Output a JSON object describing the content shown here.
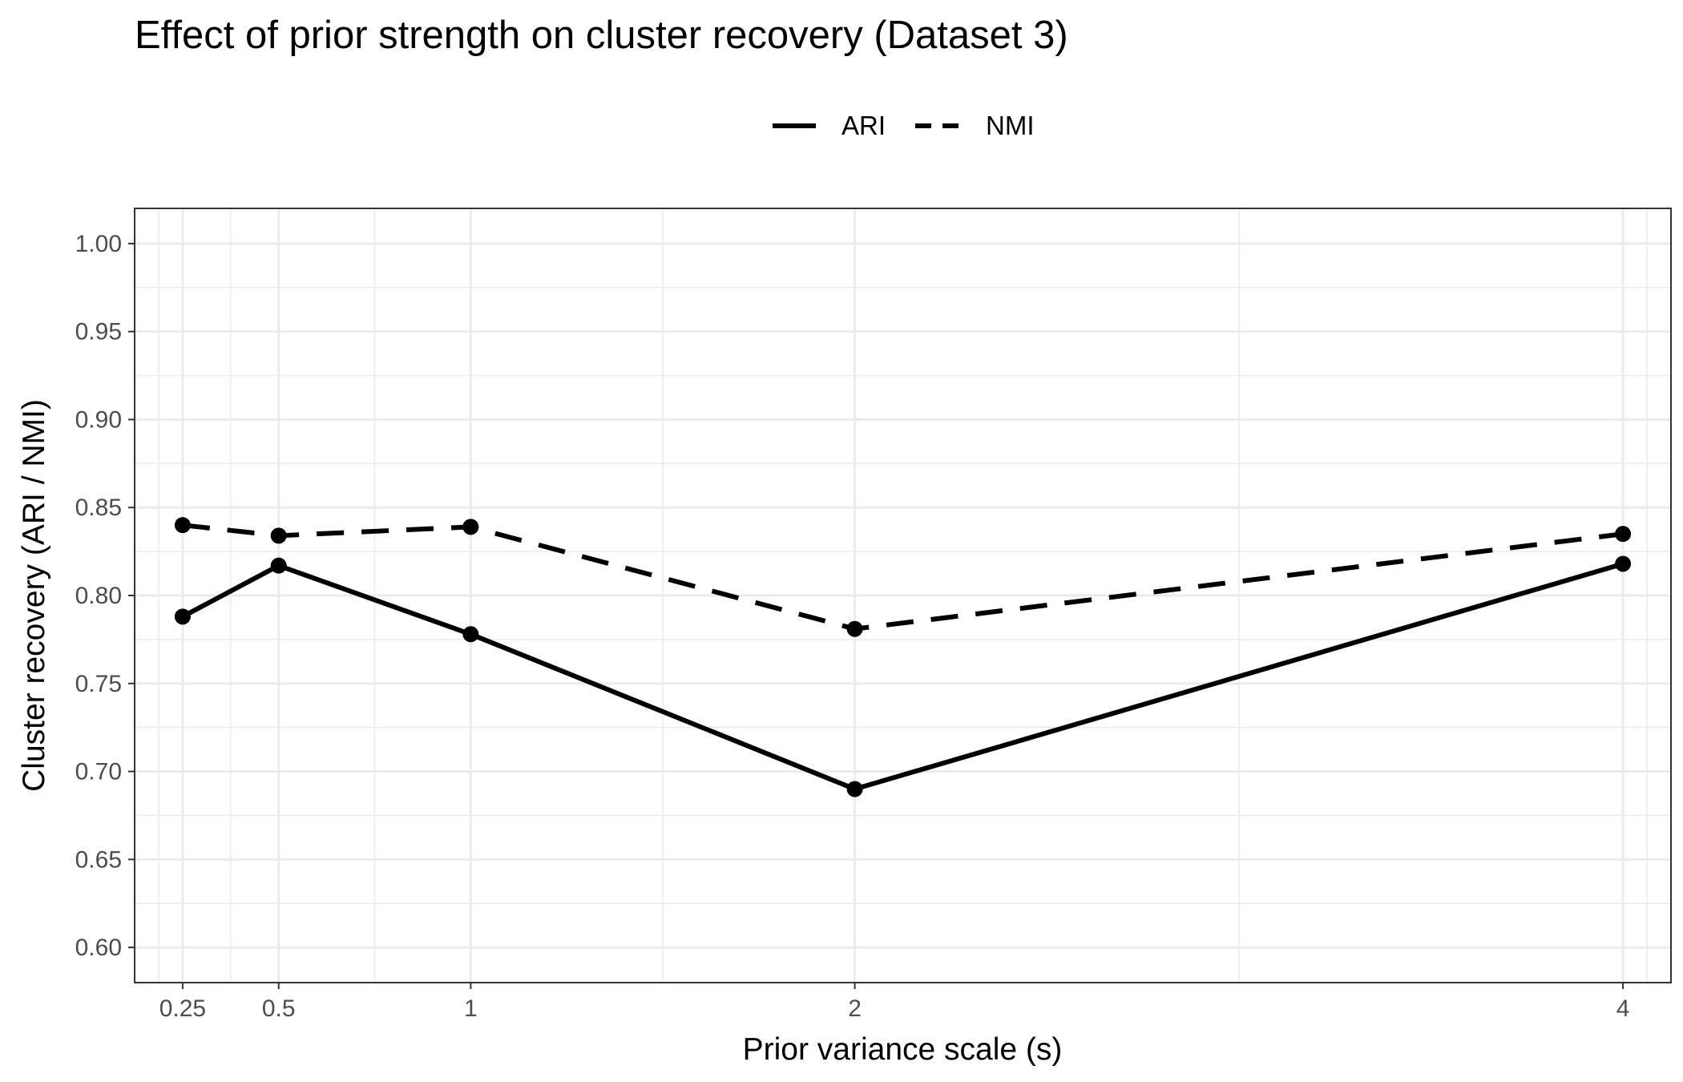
{
  "chart_data": {
    "type": "line",
    "title": "Effect of prior strength on cluster recovery (Dataset 3)",
    "xlabel": "Prior variance scale (s)",
    "ylabel": "Cluster recovery (ARI / NMI)",
    "x": [
      0.25,
      0.5,
      1,
      2,
      4
    ],
    "x_tick_labels": [
      "0.25",
      "0.5",
      "1",
      "2",
      "4"
    ],
    "xlim": [
      0.125,
      4.125
    ],
    "ylim": [
      0.58,
      1.02
    ],
    "y_ticks": [
      0.6,
      0.65,
      0.7,
      0.75,
      0.8,
      0.85,
      0.9,
      0.95,
      1.0
    ],
    "y_tick_labels": [
      "0.60",
      "0.65",
      "0.70",
      "0.75",
      "0.80",
      "0.85",
      "0.90",
      "0.95",
      "1.00"
    ],
    "grid": true,
    "legend_position": "top",
    "series": [
      {
        "name": "ARI",
        "line_style": "solid",
        "values": [
          0.788,
          0.817,
          0.778,
          0.69,
          0.818
        ]
      },
      {
        "name": "NMI",
        "line_style": "dashed",
        "values": [
          0.84,
          0.834,
          0.839,
          0.781,
          0.835
        ]
      }
    ],
    "colors": {
      "line": "#000000",
      "grid": "#ebebeb",
      "panel_border": "#333333",
      "tick_text": "#4d4d4d"
    }
  }
}
